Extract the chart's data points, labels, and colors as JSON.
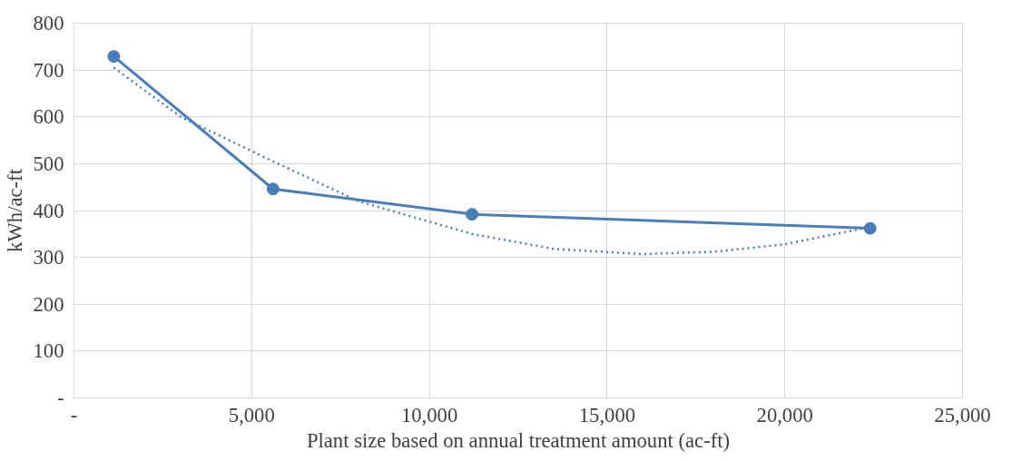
{
  "chart_data": {
    "type": "line",
    "xlabel": "Plant size based on annual treatment amount (ac-ft)",
    "ylabel": "kWh/ac-ft",
    "xlim": [
      0,
      25000
    ],
    "xticks": [
      {
        "value": 0,
        "label": "-"
      },
      {
        "value": 5000,
        "label": "5,000"
      },
      {
        "value": 10000,
        "label": "10,000"
      },
      {
        "value": 15000,
        "label": "15,000"
      },
      {
        "value": 20000,
        "label": "20,000"
      },
      {
        "value": 25000,
        "label": "25,000"
      }
    ],
    "ylim": [
      0,
      800
    ],
    "yticks": [
      {
        "value": 0,
        "label": "-"
      },
      100,
      200,
      300,
      400,
      500,
      600,
      700,
      800
    ],
    "grid": true,
    "series": [
      {
        "color": "#4a7ebb",
        "x": [
          1120,
          5600,
          11200,
          22400
        ],
        "values": [
          729,
          446,
          392,
          362
        ],
        "marker": "circle",
        "line_style": "solid"
      },
      {
        "type": "line",
        "color": "#4a7ebb",
        "x": [
          1120,
          3000,
          5600,
          8000,
          11200,
          13500,
          16000,
          18000,
          20000,
          22400
        ],
        "values": [
          705,
          600,
          505,
          420,
          350,
          318,
          307,
          312,
          328,
          365
        ],
        "marker": "none",
        "line_style": "dotted"
      }
    ]
  }
}
